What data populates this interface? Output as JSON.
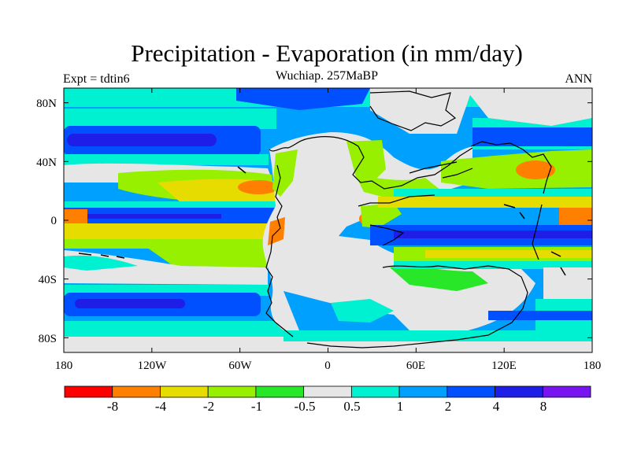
{
  "figure": {
    "title": "Precipitation - Evaporation (in mm/day)",
    "subtitle": "Wuchiap. 257MaBP",
    "left_label": "Expt = tdtin6",
    "right_label": "ANN"
  },
  "map": {
    "projection": "cylindrical-equidistant",
    "lon_range": [
      -180,
      180
    ],
    "lat_range": [
      -90,
      90
    ],
    "lon_ticks": [
      {
        "value": -180,
        "label": "180"
      },
      {
        "value": -120,
        "label": "120W"
      },
      {
        "value": -60,
        "label": "60W"
      },
      {
        "value": 0,
        "label": "0"
      },
      {
        "value": 60,
        "label": "60E"
      },
      {
        "value": 120,
        "label": "120E"
      },
      {
        "value": 180,
        "label": "180"
      }
    ],
    "lat_ticks": [
      {
        "value": 80,
        "label": "80N"
      },
      {
        "value": 40,
        "label": "40N"
      },
      {
        "value": 0,
        "label": "0"
      },
      {
        "value": -40,
        "label": "40S"
      },
      {
        "value": -80,
        "label": "80S"
      }
    ]
  },
  "colorbar": {
    "colors": [
      "#ff0000",
      "#ff8000",
      "#e6dc00",
      "#96f000",
      "#28e628",
      "#e6e6e6",
      "#00f0d2",
      "#00a0ff",
      "#0050ff",
      "#1e1ee6",
      "#7814f0"
    ],
    "labels": [
      "-8",
      "-4",
      "-2",
      "-1",
      "-0.5",
      "0.5",
      "1",
      "2",
      "4",
      "8"
    ]
  }
}
